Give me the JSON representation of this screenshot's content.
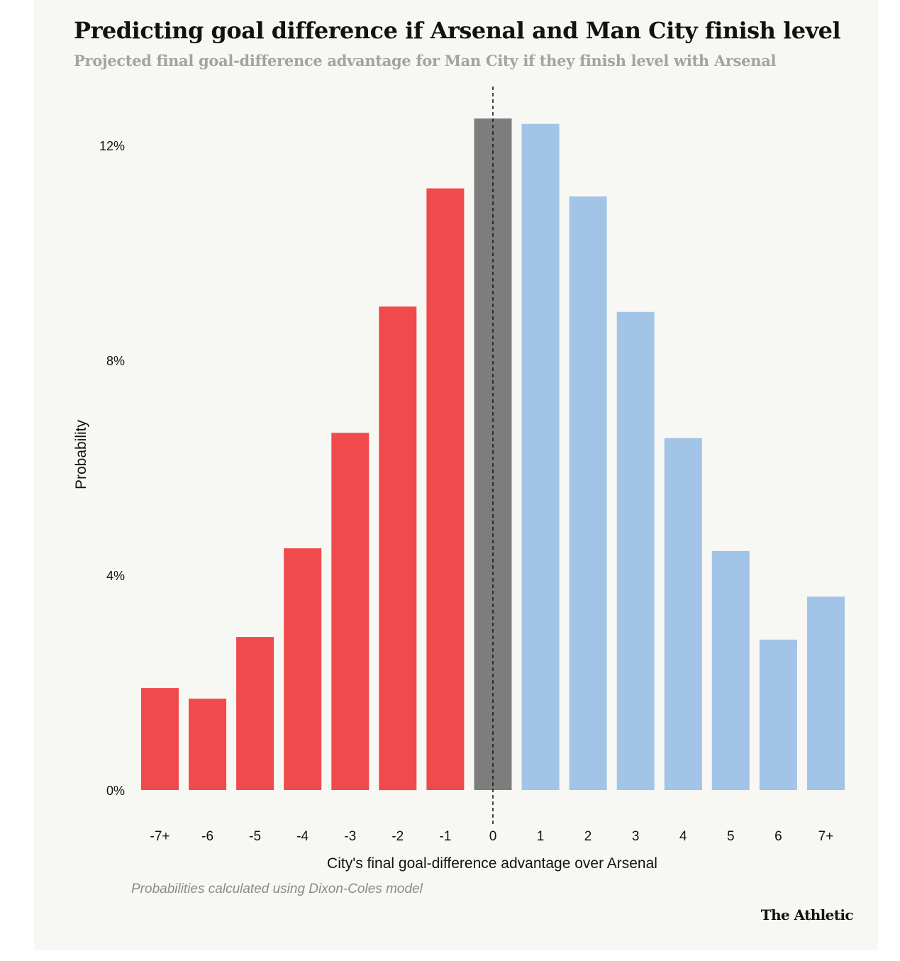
{
  "title": "Predicting goal difference if Arsenal and Man City finish level",
  "subtitle": "Projected final goal-difference advantage for Man City if they finish level with Arsenal",
  "footnote": "Probabilities calculated using Dixon-Coles model",
  "brand": "The Athletic",
  "colors": {
    "arsenal": "#f04a4c",
    "level": "#7d7d7d",
    "city": "#a2c4e6",
    "background": "#f7f7f4"
  },
  "chart_data": {
    "type": "bar",
    "title": "Predicting goal difference if Arsenal and Man City finish level",
    "subtitle": "Projected final goal-difference advantage for Man City if they finish level with Arsenal",
    "xlabel": "City's final goal-difference advantage over Arsenal",
    "ylabel": "Probability",
    "categories": [
      "-7+",
      "-6",
      "-5",
      "-4",
      "-3",
      "-2",
      "-1",
      "0",
      "1",
      "2",
      "3",
      "4",
      "5",
      "6",
      "7+"
    ],
    "values": [
      1.9,
      1.7,
      2.85,
      4.5,
      6.65,
      9.0,
      11.2,
      12.5,
      12.4,
      11.05,
      8.9,
      6.55,
      4.45,
      2.8,
      3.6
    ],
    "bar_groups": [
      "arsenal",
      "arsenal",
      "arsenal",
      "arsenal",
      "arsenal",
      "arsenal",
      "arsenal",
      "level",
      "city",
      "city",
      "city",
      "city",
      "city",
      "city",
      "city"
    ],
    "ylim": [
      0,
      12
    ],
    "yticks": [
      0,
      4,
      8,
      12
    ],
    "ytick_labels": [
      "0%",
      "4%",
      "8%",
      "12%"
    ],
    "reference_line": {
      "x": "0",
      "style": "dashed"
    },
    "grid": false,
    "legend": "none"
  }
}
